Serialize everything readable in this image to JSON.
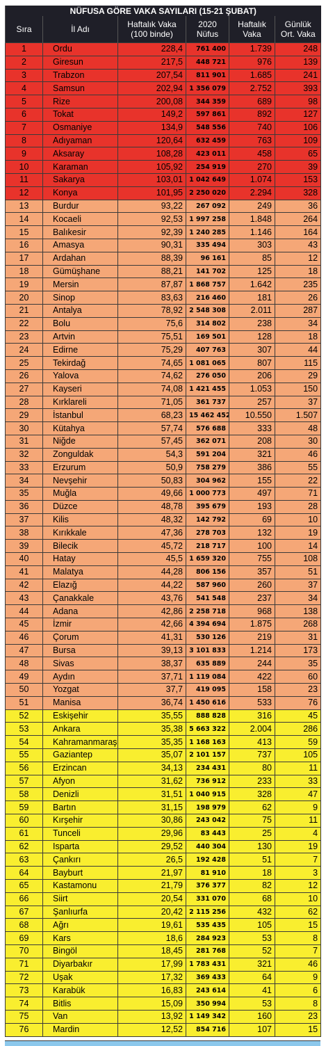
{
  "table": {
    "title": "NÜFUSA GÖRE VAKA SAYILARI (15-21 ŞUBAT)",
    "columns": [
      "Sıra",
      "İl Adı",
      "Haftalık Vaka (100 binde)",
      "2020 Nüfus",
      "Haftalık Vaka",
      "Günlük Ort. Vaka"
    ],
    "groups": [
      {
        "color": "#e8332b",
        "rows": [
          [
            "1",
            "Ordu",
            "228,4",
            "761 400",
            "1.739",
            "248"
          ],
          [
            "2",
            "Giresun",
            "217,5",
            "448 721",
            "976",
            "139"
          ],
          [
            "3",
            "Trabzon",
            "207,54",
            "811 901",
            "1.685",
            "241"
          ],
          [
            "4",
            "Samsun",
            "202,94",
            "1 356 079",
            "2.752",
            "393"
          ],
          [
            "5",
            "Rize",
            "200,08",
            "344 359",
            "689",
            "98"
          ],
          [
            "6",
            "Tokat",
            "149,2",
            "597 861",
            "892",
            "127"
          ],
          [
            "7",
            "Osmaniye",
            "134,9",
            "548 556",
            "740",
            "106"
          ],
          [
            "8",
            "Adıyaman",
            "120,64",
            "632 459",
            "763",
            "109"
          ],
          [
            "9",
            "Aksaray",
            "108,28",
            "423 011",
            "458",
            "65"
          ],
          [
            "10",
            "Karaman",
            "105,92",
            "254 919",
            "270",
            "39"
          ],
          [
            "11",
            "Sakarya",
            "103,01",
            "1 042 649",
            "1.074",
            "153"
          ],
          [
            "12",
            "Konya",
            "101,95",
            "2 250 020",
            "2.294",
            "328"
          ]
        ]
      },
      {
        "color": "#f5a777",
        "rows": [
          [
            "13",
            "Burdur",
            "93,22",
            "267 092",
            "249",
            "36"
          ],
          [
            "14",
            "Kocaeli",
            "92,53",
            "1 997 258",
            "1.848",
            "264"
          ],
          [
            "15",
            "Balıkesir",
            "92,39",
            "1 240 285",
            "1.146",
            "164"
          ],
          [
            "16",
            "Amasya",
            "90,31",
            "335 494",
            "303",
            "43"
          ],
          [
            "17",
            "Ardahan",
            "88,39",
            "96 161",
            "85",
            "12"
          ],
          [
            "18",
            "Gümüşhane",
            "88,21",
            "141 702",
            "125",
            "18"
          ],
          [
            "19",
            "Mersin",
            "87,87",
            "1 868 757",
            "1.642",
            "235"
          ],
          [
            "20",
            "Sinop",
            "83,63",
            "216 460",
            "181",
            "26"
          ],
          [
            "21",
            "Antalya",
            "78,92",
            "2 548 308",
            "2.011",
            "287"
          ],
          [
            "22",
            "Bolu",
            "75,6",
            "314 802",
            "238",
            "34"
          ],
          [
            "23",
            "Artvin",
            "75,51",
            "169 501",
            "128",
            "18"
          ],
          [
            "24",
            "Edirne",
            "75,29",
            "407 763",
            "307",
            "44"
          ],
          [
            "25",
            "Tekirdağ",
            "74,65",
            "1 081 065",
            "807",
            "115"
          ],
          [
            "26",
            "Yalova",
            "74,62",
            "276 050",
            "206",
            "29"
          ],
          [
            "27",
            "Kayseri",
            "74,08",
            "1 421 455",
            "1.053",
            "150"
          ],
          [
            "28",
            "Kırklareli",
            "71,05",
            "361 737",
            "257",
            "37"
          ],
          [
            "29",
            "İstanbul",
            "68,23",
            "15 462 452",
            "10.550",
            "1.507"
          ],
          [
            "30",
            "Kütahya",
            "57,74",
            "576 688",
            "333",
            "48"
          ],
          [
            "31",
            "Niğde",
            "57,45",
            "362 071",
            "208",
            "30"
          ],
          [
            "32",
            "Zonguldak",
            "54,3",
            "591 204",
            "321",
            "46"
          ],
          [
            "33",
            "Erzurum",
            "50,9",
            "758 279",
            "386",
            "55"
          ],
          [
            "34",
            "Nevşehir",
            "50,83",
            "304 962",
            "155",
            "22"
          ],
          [
            "35",
            "Muğla",
            "49,66",
            "1 000 773",
            "497",
            "71"
          ],
          [
            "36",
            "Düzce",
            "48,78",
            "395 679",
            "193",
            "28"
          ],
          [
            "37",
            "Kilis",
            "48,32",
            "142 792",
            "69",
            "10"
          ],
          [
            "38",
            "Kırıkkale",
            "47,36",
            "278 703",
            "132",
            "19"
          ],
          [
            "39",
            "Bilecik",
            "45,72",
            "218 717",
            "100",
            "14"
          ],
          [
            "40",
            "Hatay",
            "45,5",
            "1 659 320",
            "755",
            "108"
          ],
          [
            "41",
            "Malatya",
            "44,28",
            "806 156",
            "357",
            "51"
          ],
          [
            "42",
            "Elazığ",
            "44,22",
            "587 960",
            "260",
            "37"
          ],
          [
            "43",
            "Çanakkale",
            "43,76",
            "541 548",
            "237",
            "34"
          ],
          [
            "44",
            "Adana",
            "42,86",
            "2 258 718",
            "968",
            "138"
          ],
          [
            "45",
            "İzmir",
            "42,66",
            "4 394 694",
            "1.875",
            "268"
          ],
          [
            "46",
            "Çorum",
            "41,31",
            "530 126",
            "219",
            "31"
          ],
          [
            "47",
            "Bursa",
            "39,13",
            "3 101 833",
            "1.214",
            "173"
          ],
          [
            "48",
            "Sivas",
            "38,37",
            "635 889",
            "244",
            "35"
          ],
          [
            "49",
            "Aydın",
            "37,71",
            "1 119 084",
            "422",
            "60"
          ],
          [
            "50",
            "Yozgat",
            "37,7",
            "419 095",
            "158",
            "23"
          ],
          [
            "51",
            "Manisa",
            "36,74",
            "1 450 616",
            "533",
            "76"
          ]
        ]
      },
      {
        "color": "#f9ee2f",
        "rows": [
          [
            "52",
            "Eskişehir",
            "35,55",
            "888 828",
            "316",
            "45"
          ],
          [
            "53",
            "Ankara",
            "35,38",
            "5 663 322",
            "2.004",
            "286"
          ],
          [
            "54",
            "Kahramanmaraş",
            "35,35",
            "1 168 163",
            "413",
            "59"
          ],
          [
            "55",
            "Gaziantep",
            "35,07",
            "2 101 157",
            "737",
            "105"
          ],
          [
            "56",
            "Erzincan",
            "34,13",
            "234 431",
            "80",
            "11"
          ],
          [
            "57",
            "Afyon",
            "31,62",
            "736 912",
            "233",
            "33"
          ],
          [
            "58",
            "Denizli",
            "31,51",
            "1 040 915",
            "328",
            "47"
          ],
          [
            "59",
            "Bartın",
            "31,15",
            "198 979",
            "62",
            "9"
          ],
          [
            "60",
            "Kırşehir",
            "30,86",
            "243 042",
            "75",
            "11"
          ],
          [
            "61",
            "Tunceli",
            "29,96",
            "83 443",
            "25",
            "4"
          ],
          [
            "62",
            "Isparta",
            "29,52",
            "440 304",
            "130",
            "19"
          ],
          [
            "63",
            "Çankırı",
            "26,5",
            "192 428",
            "51",
            "7"
          ],
          [
            "64",
            "Bayburt",
            "21,97",
            "81 910",
            "18",
            "3"
          ],
          [
            "65",
            "Kastamonu",
            "21,79",
            "376 377",
            "82",
            "12"
          ],
          [
            "66",
            "Siirt",
            "20,54",
            "331 070",
            "68",
            "10"
          ],
          [
            "67",
            "Şanlıurfa",
            "20,42",
            "2 115 256",
            "432",
            "62"
          ],
          [
            "68",
            "Ağrı",
            "19,61",
            "535 435",
            "105",
            "15"
          ],
          [
            "69",
            "Kars",
            "18,6",
            "284 923",
            "53",
            "8"
          ],
          [
            "70",
            "Bingöl",
            "18,45",
            "281 768",
            "52",
            "7"
          ],
          [
            "71",
            "Diyarbakır",
            "17,99",
            "1 783 431",
            "321",
            "46"
          ],
          [
            "72",
            "Uşak",
            "17,32",
            "369 433",
            "64",
            "9"
          ],
          [
            "73",
            "Karabük",
            "16,83",
            "243 614",
            "41",
            "6"
          ],
          [
            "74",
            "Bitlis",
            "15,09",
            "350 994",
            "53",
            "8"
          ],
          [
            "75",
            "Van",
            "13,92",
            "1 149 342",
            "160",
            "23"
          ],
          [
            "76",
            "Mardin",
            "12,52",
            "854 716",
            "107",
            "15"
          ]
        ]
      }
    ]
  }
}
